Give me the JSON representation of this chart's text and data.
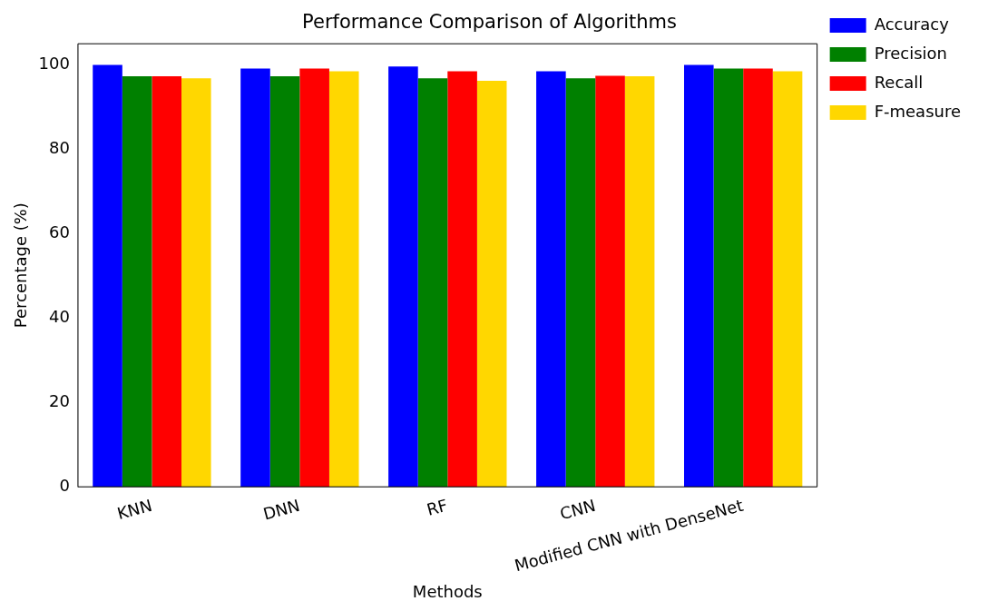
{
  "chart_data": {
    "type": "bar",
    "title": "Performance Comparison of Algorithms",
    "xlabel": "Methods",
    "ylabel": "Percentage (%)",
    "categories": [
      "KNN",
      "DNN",
      "RF",
      "CNN",
      "Modified CNN with DenseNet"
    ],
    "series": [
      {
        "name": "Accuracy",
        "color": "#0000ff",
        "values": [
          100,
          99.1,
          99.6,
          98.5,
          100
        ]
      },
      {
        "name": "Precision",
        "color": "#008000",
        "values": [
          97.3,
          97.3,
          96.8,
          96.8,
          99.1
        ]
      },
      {
        "name": "Recall",
        "color": "#ff0000",
        "values": [
          97.3,
          99.1,
          98.5,
          97.4,
          99.1
        ]
      },
      {
        "name": "F-measure",
        "color": "#ffd700",
        "values": [
          96.8,
          98.5,
          96.2,
          97.3,
          98.5
        ]
      }
    ],
    "ylim": [
      0,
      105
    ],
    "yticks": [
      0,
      20,
      40,
      60,
      80,
      100
    ],
    "grid": false,
    "legend": "right"
  }
}
